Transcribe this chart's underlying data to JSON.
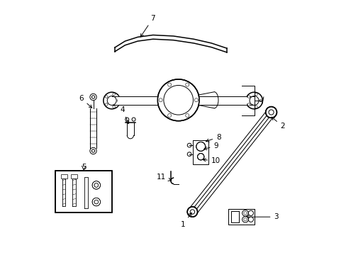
{
  "background_color": "#ffffff",
  "line_color": "#000000",
  "fig_width": 4.89,
  "fig_height": 3.6,
  "dpi": 100,
  "lw_thin": 0.7,
  "lw_med": 1.1,
  "lw_thick": 1.6,
  "fontsize": 7.5
}
